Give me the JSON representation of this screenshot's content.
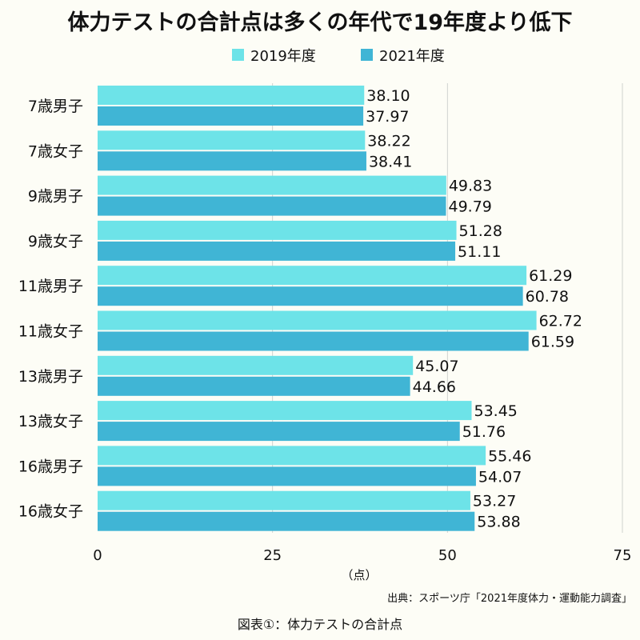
{
  "title": "体力テストの合計点は多くの年代で19年度より低下",
  "unit_label": "（点）",
  "source": "出典：スポーツ庁「2021年度体力・運動能力調査」",
  "caption": "図表①：体力テストの合計点",
  "colors": {
    "background": "#fdfdf6",
    "series_2019": "#6de3e8",
    "series_2021": "#40b5d5",
    "grid": "#cfd2cf"
  },
  "chart_data": {
    "type": "bar",
    "orientation": "horizontal",
    "title": "体力テストの合計点は多くの年代で19年度より低下",
    "xlabel": "（点）",
    "ylabel": "",
    "xlim": [
      0,
      75
    ],
    "xticks": [
      "0",
      "25",
      "50",
      "75"
    ],
    "grid": true,
    "legend_position": "top",
    "categories": [
      "7歳男子",
      "7歳女子",
      "9歳男子",
      "9歳女子",
      "11歳男子",
      "11歳女子",
      "13歳男子",
      "13歳女子",
      "16歳男子",
      "16歳女子"
    ],
    "series": [
      {
        "name": "2019年度",
        "color": "#6de3e8",
        "values": [
          38.1,
          38.22,
          49.83,
          51.28,
          61.29,
          62.72,
          45.07,
          53.45,
          55.46,
          53.27
        ],
        "labels": [
          "38.10",
          "38.22",
          "49.83",
          "51.28",
          "61.29",
          "62.72",
          "45.07",
          "53.45",
          "55.46",
          "53.27"
        ]
      },
      {
        "name": "2021年度",
        "color": "#40b5d5",
        "values": [
          37.97,
          38.41,
          49.79,
          51.11,
          60.78,
          61.59,
          44.66,
          51.76,
          54.07,
          53.88
        ],
        "labels": [
          "37.97",
          "38.41",
          "49.79",
          "51.11",
          "60.78",
          "61.59",
          "44.66",
          "51.76",
          "54.07",
          "53.88"
        ]
      }
    ]
  }
}
